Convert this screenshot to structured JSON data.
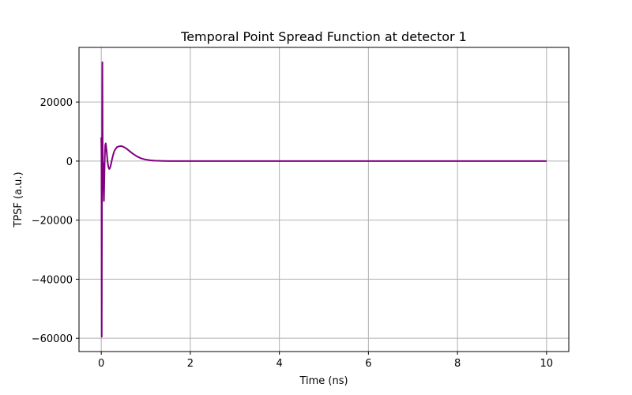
{
  "chart_data": {
    "type": "line",
    "title": "Temporal Point Spread Function at detector 1",
    "xlabel": "Time (ns)",
    "ylabel": "TPSF (a.u.)",
    "xlim": [
      -0.5,
      10.5
    ],
    "ylim": [
      -64500,
      38500
    ],
    "xticks": [
      0,
      2,
      4,
      6,
      8,
      10
    ],
    "xtick_labels": [
      "0",
      "2",
      "4",
      "6",
      "8",
      "10"
    ],
    "yticks": [
      -60000,
      -40000,
      -20000,
      0,
      20000
    ],
    "ytick_labels": [
      "−60000",
      "−40000",
      "−20000",
      "0",
      "20000"
    ],
    "grid": true,
    "series": [
      {
        "color": "#800080",
        "x": [
          0.0,
          0.005,
          0.01,
          0.015,
          0.02,
          0.025,
          0.03,
          0.035,
          0.04,
          0.05,
          0.06,
          0.07,
          0.08,
          0.09,
          0.1,
          0.12,
          0.14,
          0.16,
          0.18,
          0.2,
          0.22,
          0.24,
          0.26,
          0.28,
          0.3,
          0.35,
          0.4,
          0.45,
          0.5,
          0.55,
          0.6,
          0.7,
          0.8,
          0.9,
          1.0,
          1.1,
          1.2,
          1.4,
          1.6,
          1.8,
          2.0,
          2.5,
          3.0,
          4.0,
          5.0,
          6.0,
          7.0,
          8.0,
          9.0,
          10.0
        ],
        "y": [
          8000,
          3000,
          -59500,
          -20000,
          8000,
          33500,
          10000,
          -3000,
          -500,
          -8000,
          -13500,
          -5000,
          1500,
          5500,
          6000,
          3500,
          0,
          -2000,
          -2700,
          -2200,
          -1000,
          500,
          1700,
          2800,
          3600,
          4700,
          5000,
          5100,
          4800,
          4400,
          3800,
          2600,
          1600,
          900,
          500,
          280,
          150,
          50,
          15,
          5,
          0,
          0,
          0,
          0,
          0,
          0,
          0,
          0,
          0,
          0
        ]
      }
    ]
  }
}
